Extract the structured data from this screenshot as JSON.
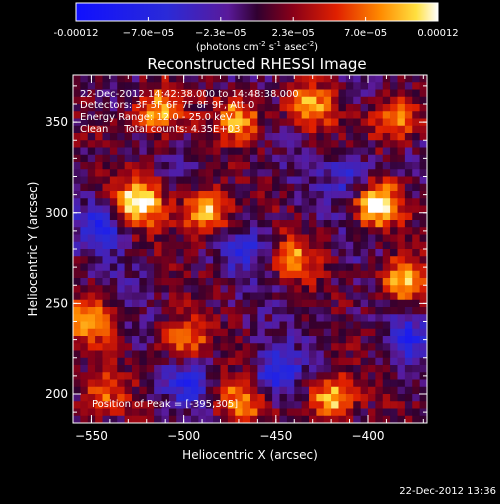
{
  "colorbar": {
    "tick_labels": [
      "-0.00012",
      "−7.0e−05",
      "−2.3e−05",
      "2.3e−05",
      "7.0e−05",
      "0.00012"
    ],
    "units_parts": [
      "(photons cm",
      "-2",
      " s",
      "-1",
      " asec",
      "-2",
      ")"
    ],
    "range": [
      -0.00012,
      0.00012
    ]
  },
  "chart_data": {
    "type": "heatmap",
    "title": "Reconstructed RHESSI Image",
    "xlabel": "Heliocentric X (arcsec)",
    "ylabel": "Heliocentric Y (arcsec)",
    "xlim": [
      -560,
      -368
    ],
    "ylim": [
      184,
      376
    ],
    "x_ticks": [
      -550,
      -500,
      -450,
      -400
    ],
    "y_ticks": [
      200,
      250,
      300,
      350
    ],
    "x_tick_labels": [
      "−550",
      "−500",
      "−450",
      "−400"
    ],
    "y_tick_labels": [
      "200",
      "250",
      "300",
      "350"
    ],
    "peak": [
      -395,
      305
    ],
    "hot_spots": [
      {
        "x": -524,
        "y": 306,
        "value": 0.00012
      },
      {
        "x": -488,
        "y": 300,
        "value": 0.00011
      },
      {
        "x": -514,
        "y": 356,
        "value": 0.0001
      },
      {
        "x": -470,
        "y": 352,
        "value": 9e-05
      },
      {
        "x": -432,
        "y": 358,
        "value": 9e-05
      },
      {
        "x": -440,
        "y": 275,
        "value": 7e-05
      },
      {
        "x": -395,
        "y": 305,
        "value": 0.00012
      },
      {
        "x": -385,
        "y": 352,
        "value": 0.0001
      },
      {
        "x": -382,
        "y": 262,
        "value": 0.0001
      },
      {
        "x": -500,
        "y": 230,
        "value": 8e-05
      },
      {
        "x": -420,
        "y": 198,
        "value": 0.00011
      },
      {
        "x": -470,
        "y": 195,
        "value": 9e-05
      },
      {
        "x": -550,
        "y": 240,
        "value": 8e-05
      },
      {
        "x": -545,
        "y": 200,
        "value": 7e-05
      }
    ],
    "cold_spots": [
      {
        "x": -545,
        "y": 292,
        "value": -7e-05
      },
      {
        "x": -450,
        "y": 210,
        "value": -8e-05
      },
      {
        "x": -500,
        "y": 205,
        "value": -6e-05
      },
      {
        "x": -408,
        "y": 320,
        "value": -6e-05
      },
      {
        "x": -465,
        "y": 280,
        "value": -5e-05
      },
      {
        "x": -378,
        "y": 230,
        "value": -6e-05
      }
    ]
  },
  "annotations": {
    "time_range": "22-Dec-2012 14:42:38.000 to 14:48:38.000",
    "detectors": "Detectors: 3F 5F 6F 7F 8F 9F, Att 0",
    "energy": "Energy Range: 12.0 - 25.0 keV",
    "clean": "Clean     Total counts: 4.35E+03",
    "peak": "Position of Peak = [-395,305]"
  },
  "footer": {
    "timestamp": "22-Dec-2012 13:36"
  }
}
